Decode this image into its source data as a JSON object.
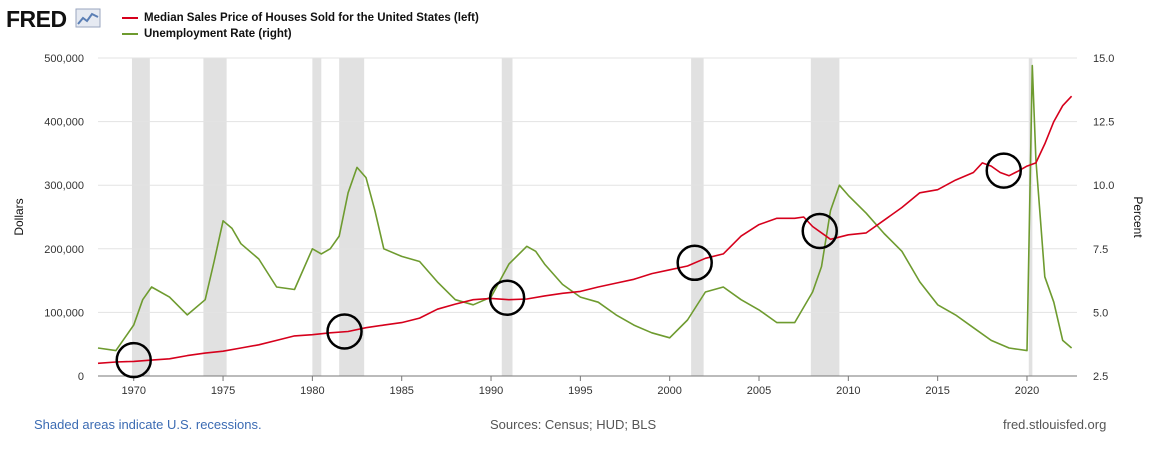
{
  "logo": {
    "text": "FRED"
  },
  "legend": [
    {
      "label": "Median Sales Price of Houses Sold for the United States (left)",
      "color": "#d6001c"
    },
    {
      "label": "Unemployment Rate (right)",
      "color": "#6e9b2f"
    }
  ],
  "footer": {
    "note": "Shaded areas indicate U.S. recessions.",
    "sources": "Sources: Census; HUD; BLS",
    "site": "fred.stlouisfed.org"
  },
  "chart_data": {
    "type": "line",
    "title": "",
    "ylabel_left": "Dollars",
    "ylabel_right": "Percent",
    "xlim": [
      1968,
      2022.8
    ],
    "ylim_left": [
      0,
      500000
    ],
    "ylim_right": [
      2.5,
      15.0
    ],
    "x_ticks": [
      "1970",
      "1975",
      "1980",
      "1985",
      "1990",
      "1995",
      "2000",
      "2005",
      "2010",
      "2015",
      "2020"
    ],
    "y_ticks_left": [
      "0",
      "100,000",
      "200,000",
      "300,000",
      "400,000",
      "500,000"
    ],
    "y_ticks_right": [
      "2.5",
      "5.0",
      "7.5",
      "10.0",
      "12.5",
      "15.0"
    ],
    "recessions": [
      [
        1969.9,
        1970.9
      ],
      [
        1973.9,
        1975.2
      ],
      [
        1980.0,
        1980.5
      ],
      [
        1981.5,
        1982.9
      ],
      [
        1990.6,
        1991.2
      ],
      [
        2001.2,
        2001.9
      ],
      [
        2007.9,
        2009.5
      ],
      [
        2020.1,
        2020.3
      ]
    ],
    "series": [
      {
        "name": "Median Sales Price of Houses Sold for the United States",
        "axis": "left",
        "color": "#d6001c",
        "x": [
          1968,
          1969,
          1970,
          1971,
          1972,
          1973,
          1974,
          1975,
          1976,
          1977,
          1978,
          1979,
          1980,
          1981,
          1982,
          1983,
          1984,
          1985,
          1986,
          1987,
          1988,
          1989,
          1990,
          1991,
          1992,
          1993,
          1994,
          1995,
          1996,
          1997,
          1998,
          1999,
          2000,
          2001,
          2002,
          2003,
          2004,
          2005,
          2006,
          2007,
          2007.5,
          2008,
          2009,
          2010,
          2011,
          2012,
          2013,
          2014,
          2015,
          2016,
          2017,
          2017.5,
          2018,
          2018.5,
          2019,
          2019.5,
          2020,
          2020.5,
          2021,
          2021.5,
          2022,
          2022.5
        ],
        "values": [
          20000,
          22000,
          23000,
          25000,
          27000,
          32000,
          36000,
          39000,
          44000,
          49000,
          56000,
          63000,
          65000,
          68000,
          70000,
          76000,
          80000,
          84000,
          91000,
          105000,
          113000,
          120000,
          122000,
          120000,
          121000,
          126000,
          130000,
          133000,
          140000,
          146000,
          152000,
          161000,
          167000,
          173000,
          185000,
          192000,
          220000,
          238000,
          248000,
          248000,
          250000,
          235000,
          215000,
          222000,
          225000,
          245000,
          265000,
          288000,
          293000,
          308000,
          320000,
          335000,
          330000,
          320000,
          315000,
          322000,
          330000,
          335000,
          365000,
          400000,
          425000,
          440000
        ]
      },
      {
        "name": "Unemployment Rate",
        "axis": "right",
        "color": "#6e9b2f",
        "x": [
          1968,
          1969,
          1970,
          1970.5,
          1971,
          1972,
          1973,
          1974,
          1974.5,
          1975,
          1975.5,
          1976,
          1977,
          1978,
          1979,
          1980,
          1980.5,
          1981,
          1981.5,
          1982,
          1982.5,
          1983,
          1983.5,
          1984,
          1985,
          1986,
          1987,
          1988,
          1989,
          1990,
          1991,
          1992,
          1992.5,
          1993,
          1994,
          1995,
          1996,
          1997,
          1998,
          1999,
          2000,
          2001,
          2002,
          2003,
          2004,
          2005,
          2006,
          2007,
          2008,
          2008.5,
          2009,
          2009.5,
          2010,
          2011,
          2012,
          2013,
          2014,
          2015,
          2016,
          2017,
          2018,
          2019,
          2020,
          2020.3,
          2020.5,
          2021,
          2021.5,
          2022,
          2022.5
        ],
        "values": [
          3.6,
          3.5,
          4.5,
          5.5,
          6.0,
          5.6,
          4.9,
          5.5,
          7.0,
          8.6,
          8.3,
          7.7,
          7.1,
          6.0,
          5.9,
          7.5,
          7.3,
          7.5,
          8.0,
          9.7,
          10.7,
          10.3,
          9.0,
          7.5,
          7.2,
          7.0,
          6.2,
          5.5,
          5.3,
          5.6,
          6.9,
          7.6,
          7.4,
          6.9,
          6.1,
          5.6,
          5.4,
          4.9,
          4.5,
          4.2,
          4.0,
          4.7,
          5.8,
          6.0,
          5.5,
          5.1,
          4.6,
          4.6,
          5.8,
          6.8,
          9.0,
          10.0,
          9.6,
          8.9,
          8.1,
          7.4,
          6.2,
          5.3,
          4.9,
          4.4,
          3.9,
          3.6,
          3.5,
          14.7,
          11.0,
          6.4,
          5.4,
          3.9,
          3.6
        ]
      }
    ],
    "annotations": [
      {
        "type": "circle",
        "x": 1970.0,
        "value": 25000,
        "axis": "left"
      },
      {
        "type": "circle",
        "x": 1981.8,
        "value": 70000,
        "axis": "left"
      },
      {
        "type": "circle",
        "x": 1990.9,
        "value": 123000,
        "axis": "left"
      },
      {
        "type": "circle",
        "x": 2001.4,
        "value": 178000,
        "axis": "left"
      },
      {
        "type": "circle",
        "x": 2008.4,
        "value": 228000,
        "axis": "left"
      },
      {
        "type": "circle",
        "x": 2018.7,
        "value": 323000,
        "axis": "left"
      }
    ]
  }
}
